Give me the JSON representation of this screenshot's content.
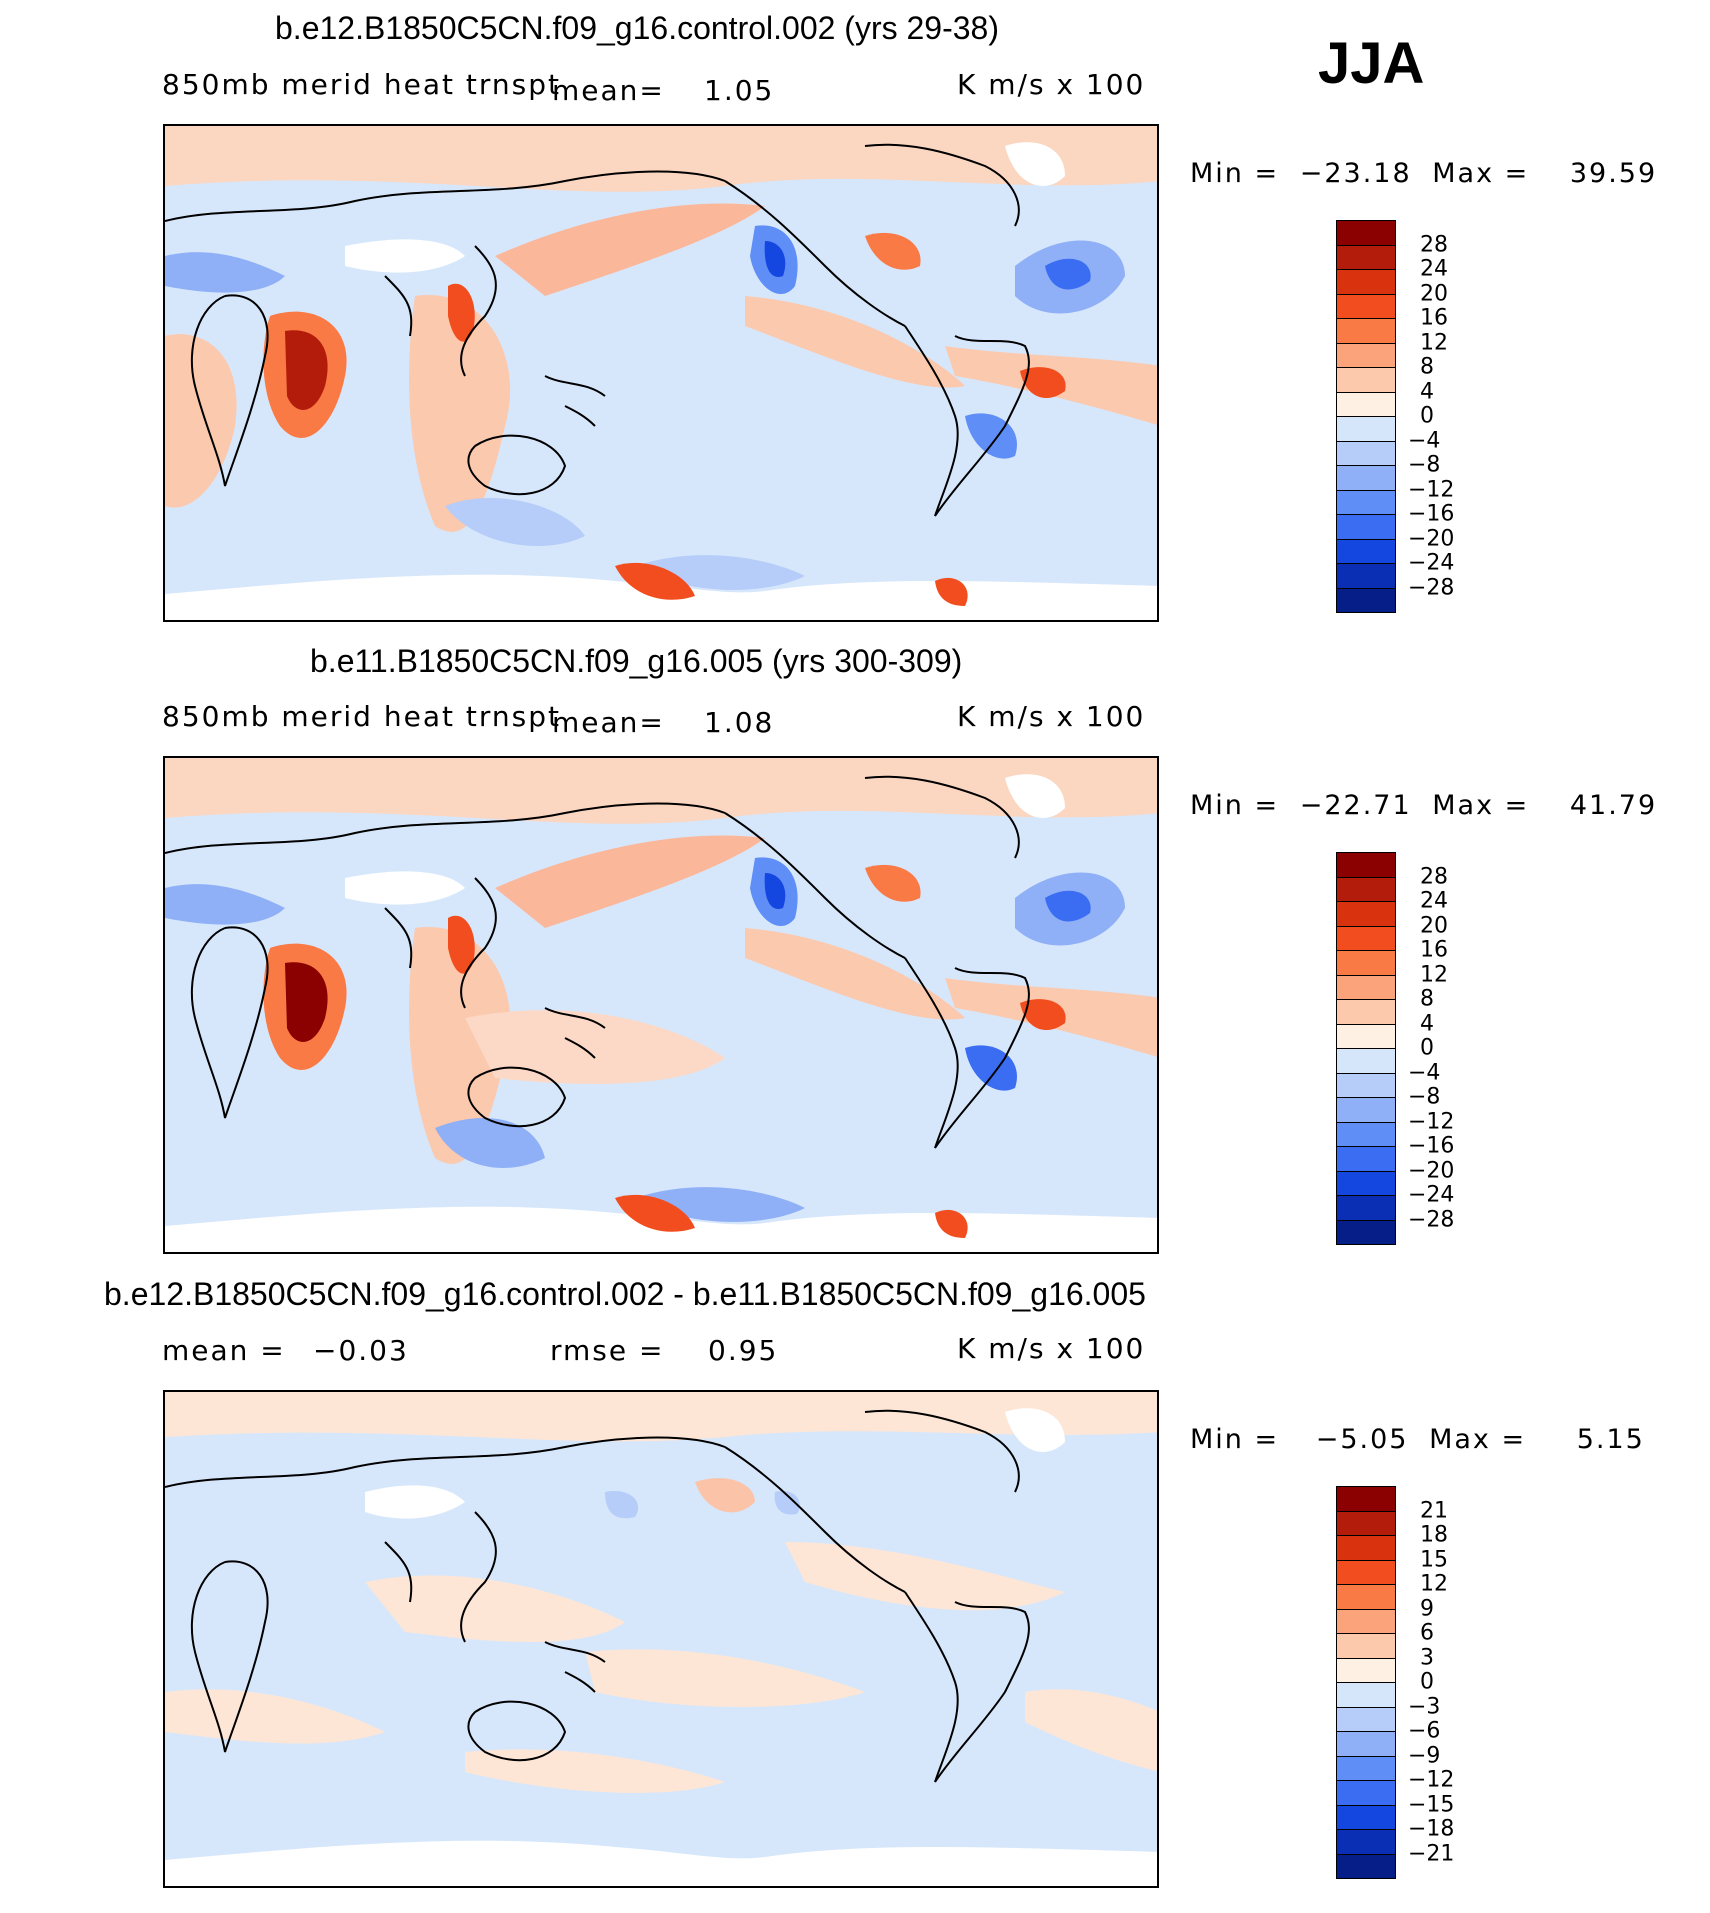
{
  "season": "JJA",
  "panels": [
    {
      "title": "b.e12.B1850C5CN.f09_g16.control.002 (yrs 29-38)",
      "variable": "850mb merid heat trnspt",
      "stat_label": "mean=",
      "stat_value": "1.05",
      "units": "K m/s x 100",
      "min_label": "Min =",
      "min_value": "−23.18",
      "max_label": "Max =",
      "max_value": "39.59",
      "colorbar_labels": [
        "28",
        "24",
        "20",
        "16",
        "12",
        "8",
        "4",
        "0",
        "−4",
        "−8",
        "−12",
        "−16",
        "−20",
        "−24",
        "−28"
      ]
    },
    {
      "title": "b.e11.B1850C5CN.f09_g16.005 (yrs 300-309)",
      "variable": "850mb merid heat trnspt",
      "stat_label": "mean=",
      "stat_value": "1.08",
      "units": "K m/s x 100",
      "min_label": "Min =",
      "min_value": "−22.71",
      "max_label": "Max =",
      "max_value": "41.79",
      "colorbar_labels": [
        "28",
        "24",
        "20",
        "16",
        "12",
        "8",
        "4",
        "0",
        "−4",
        "−8",
        "−12",
        "−16",
        "−20",
        "−24",
        "−28"
      ]
    },
    {
      "title": "b.e12.B1850C5CN.f09_g16.control.002 - b.e11.B1850C5CN.f09_g16.005",
      "mean_label": "mean =",
      "mean_value": "−0.03",
      "rmse_label": "rmse =",
      "rmse_value": "0.95",
      "units": "K m/s x 100",
      "min_label": "Min =",
      "min_value": "−5.05",
      "max_label": "Max =",
      "max_value": "5.15",
      "colorbar_labels": [
        "21",
        "18",
        "15",
        "12",
        "9",
        "6",
        "3",
        "0",
        "−3",
        "−6",
        "−9",
        "−12",
        "−15",
        "−18",
        "−21"
      ]
    }
  ],
  "colorbar_colors": [
    "#8b0000",
    "#b31c0a",
    "#d8320f",
    "#f24d1e",
    "#f97a45",
    "#fba37b",
    "#fcc9ac",
    "#fef0e3",
    "#d6e6fa",
    "#b5cdf8",
    "#8fb0f7",
    "#5f8ef6",
    "#3a6df2",
    "#1446e0",
    "#0a2fb4",
    "#061f88"
  ],
  "colors": {
    "land_white": "#ffffff",
    "ocean_lightblue": "#d7e7fb",
    "light_orange": "#fbd6c0"
  }
}
